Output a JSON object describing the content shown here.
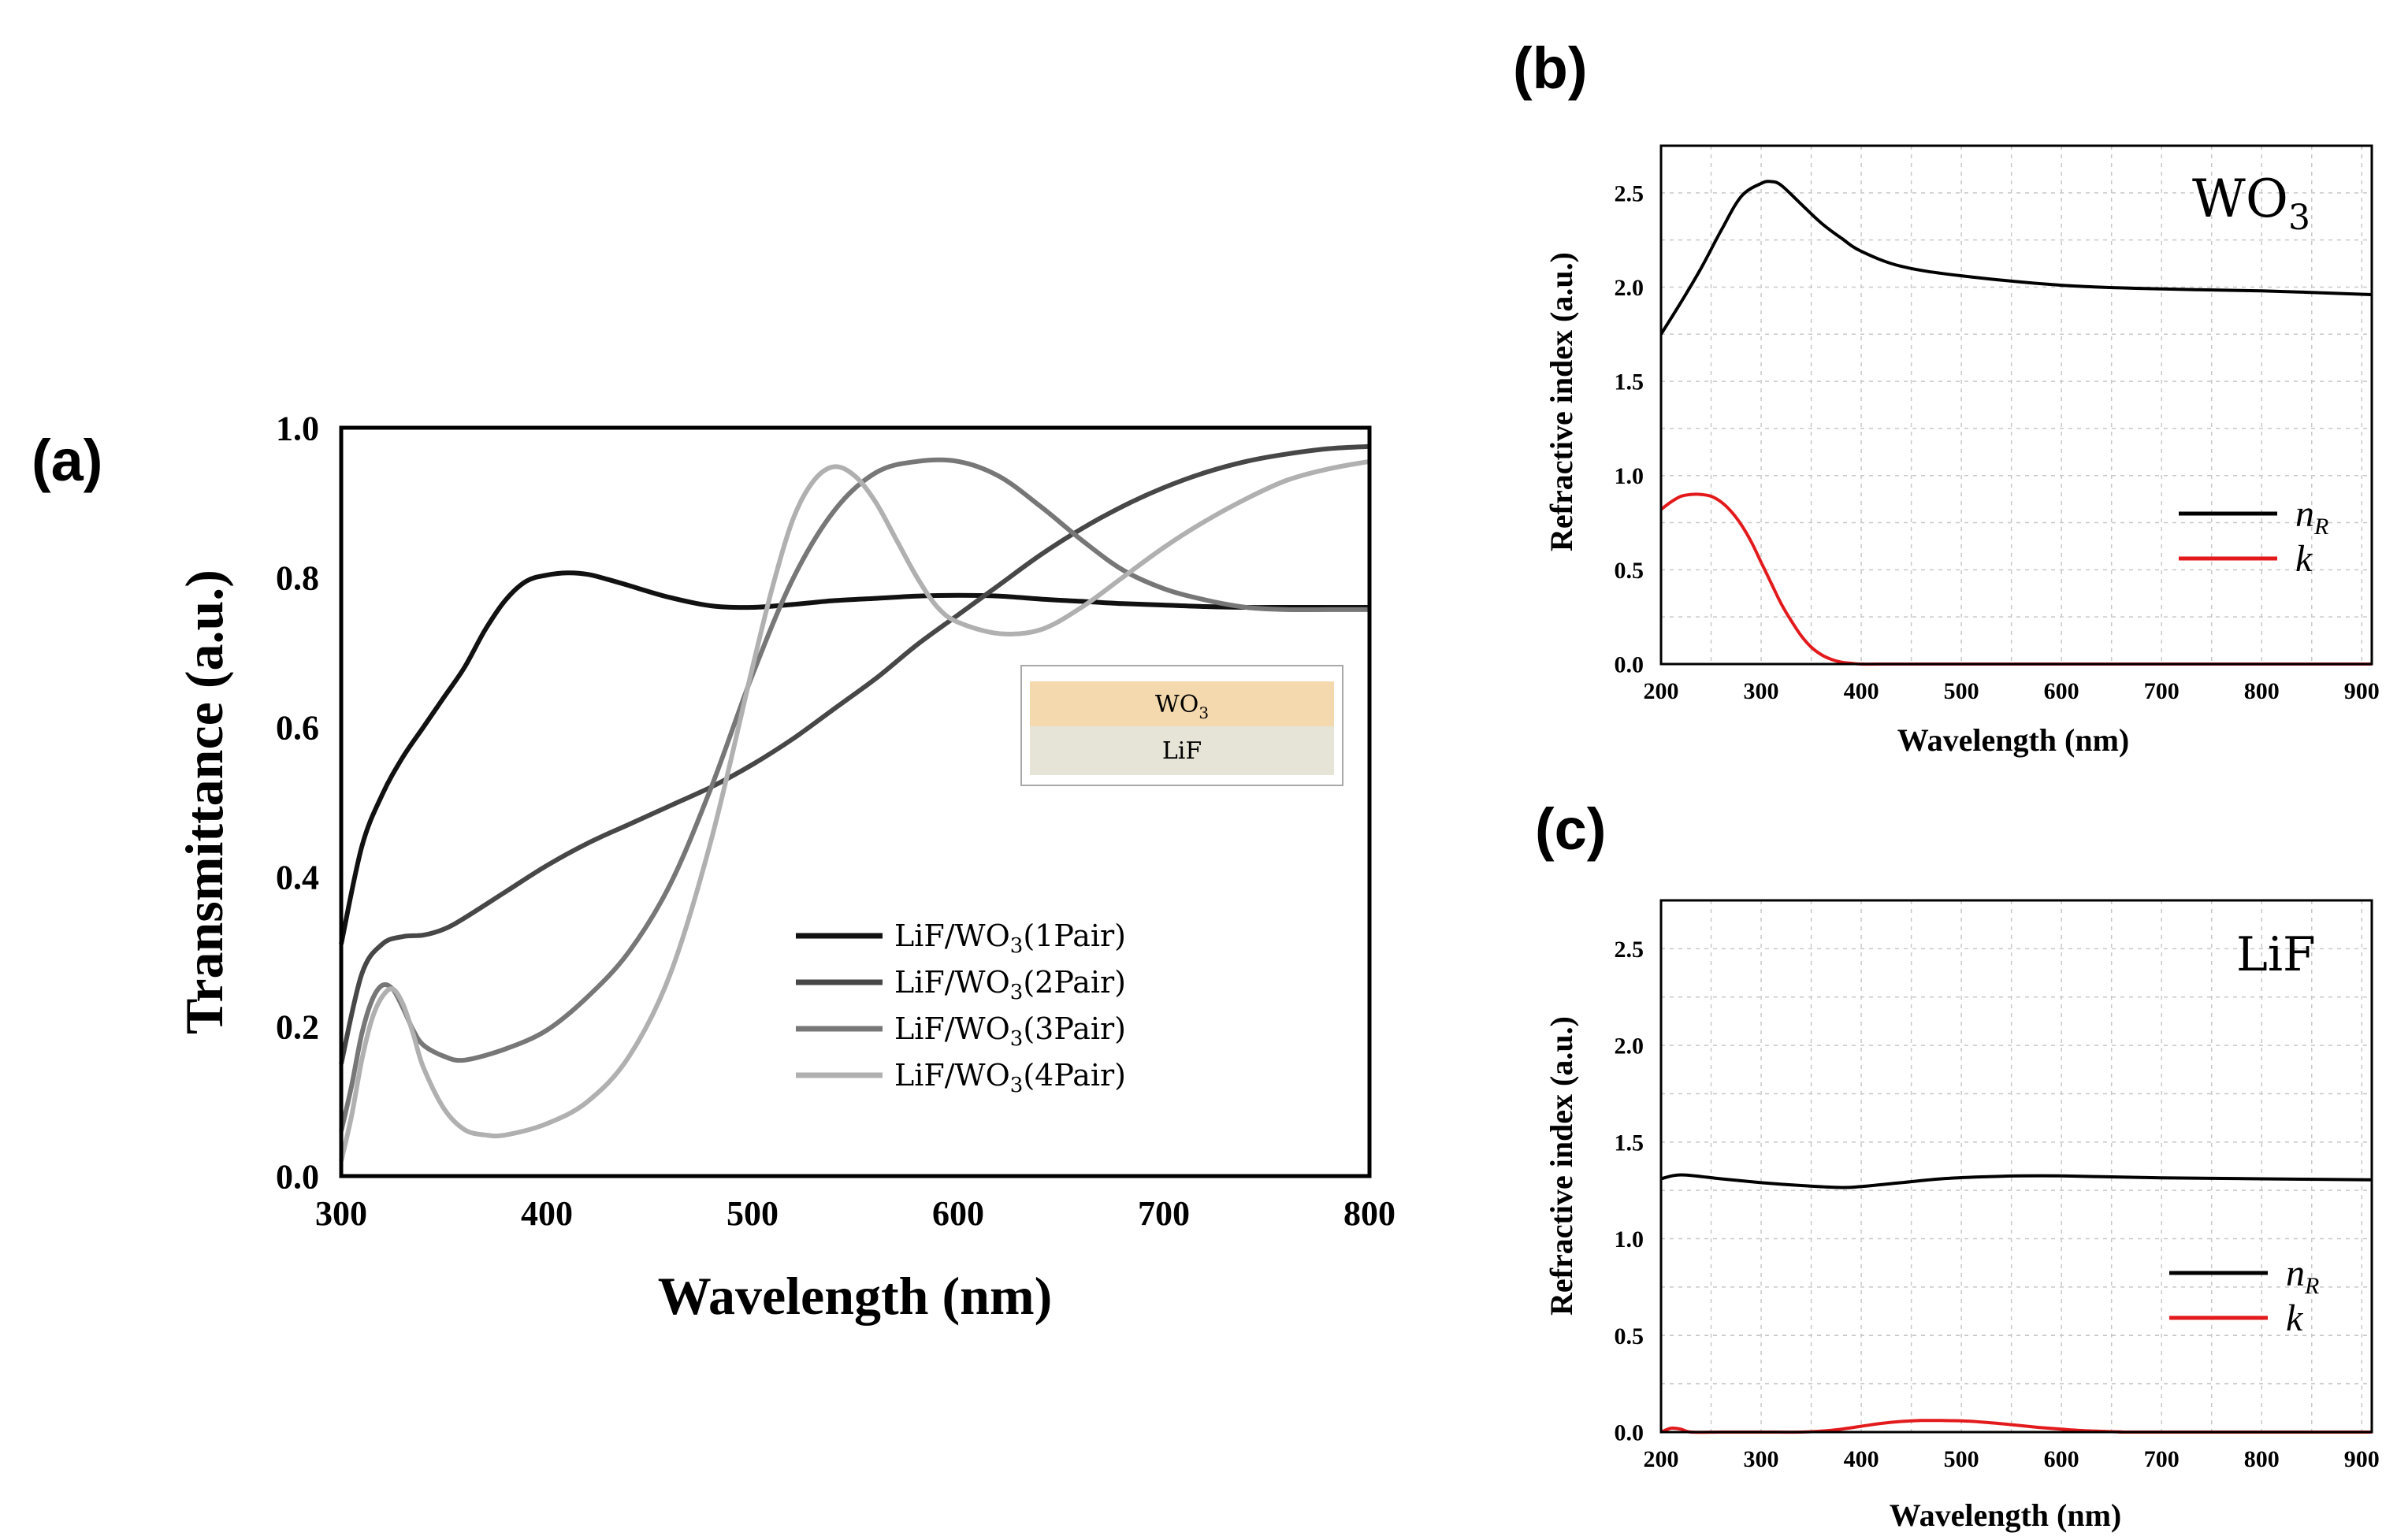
{
  "panels": {
    "a": "(a)",
    "b": "(b)",
    "c": "(c)"
  },
  "colors": {
    "series_a": [
      "#111111",
      "#474747",
      "#777777",
      "#b0b0b0"
    ],
    "n_R": "#000000",
    "k": "#e31a1c",
    "inset_top": "#f5d9ae",
    "inset_bottom": "#e6e4d6"
  },
  "inset": {
    "top_label": "WO",
    "top_sub": "3",
    "bottom_label": "LiF"
  },
  "materials": {
    "b_label": "WO",
    "b_sub": "3",
    "c_label": "LiF"
  },
  "chart_data": [
    {
      "id": "a",
      "type": "line",
      "xlabel": "Wavelength (nm)",
      "ylabel": "Transmittance (a.u.)",
      "xlim": [
        300,
        800
      ],
      "ylim": [
        0.0,
        1.0
      ],
      "xticks": [
        "300",
        "400",
        "500",
        "600",
        "700",
        "800"
      ],
      "yticks": [
        "0.0",
        "0.2",
        "0.4",
        "0.6",
        "0.8",
        "1.0"
      ],
      "grid": false,
      "legend_position": "bottom-center",
      "series": [
        {
          "name": "LiF/WO",
          "name_sub": "3",
          "name_suffix": "(1Pair)",
          "x": [
            300,
            310,
            320,
            330,
            340,
            350,
            360,
            370,
            380,
            390,
            400,
            410,
            420,
            430,
            440,
            460,
            480,
            500,
            520,
            540,
            560,
            580,
            600,
            620,
            640,
            660,
            680,
            700,
            720,
            740,
            760,
            780,
            800
          ],
          "y": [
            0.31,
            0.44,
            0.51,
            0.56,
            0.6,
            0.64,
            0.68,
            0.73,
            0.77,
            0.795,
            0.803,
            0.806,
            0.804,
            0.797,
            0.789,
            0.773,
            0.762,
            0.76,
            0.764,
            0.769,
            0.772,
            0.775,
            0.776,
            0.775,
            0.771,
            0.768,
            0.765,
            0.763,
            0.761,
            0.76,
            0.76,
            0.76,
            0.76
          ]
        },
        {
          "name": "LiF/WO",
          "name_sub": "3",
          "name_suffix": "(2Pair)",
          "x": [
            300,
            310,
            320,
            330,
            340,
            350,
            360,
            380,
            400,
            420,
            440,
            460,
            480,
            500,
            520,
            540,
            560,
            580,
            600,
            620,
            640,
            660,
            680,
            700,
            720,
            740,
            760,
            780,
            800
          ],
          "y": [
            0.15,
            0.27,
            0.31,
            0.32,
            0.322,
            0.33,
            0.345,
            0.38,
            0.415,
            0.445,
            0.47,
            0.495,
            0.52,
            0.55,
            0.585,
            0.625,
            0.665,
            0.71,
            0.75,
            0.79,
            0.83,
            0.865,
            0.895,
            0.92,
            0.94,
            0.955,
            0.965,
            0.972,
            0.975
          ]
        },
        {
          "name": "LiF/WO",
          "name_sub": "3",
          "name_suffix": "(3Pair)",
          "x": [
            300,
            305,
            310,
            315,
            320,
            325,
            330,
            335,
            340,
            350,
            360,
            380,
            400,
            420,
            440,
            460,
            480,
            500,
            520,
            540,
            560,
            580,
            600,
            620,
            640,
            660,
            680,
            700,
            720,
            740,
            760,
            780,
            800
          ],
          "y": [
            0.06,
            0.12,
            0.19,
            0.235,
            0.255,
            0.25,
            0.225,
            0.195,
            0.175,
            0.16,
            0.155,
            0.17,
            0.195,
            0.24,
            0.3,
            0.39,
            0.52,
            0.67,
            0.8,
            0.89,
            0.94,
            0.955,
            0.955,
            0.935,
            0.895,
            0.85,
            0.81,
            0.785,
            0.77,
            0.76,
            0.757,
            0.757,
            0.757
          ]
        },
        {
          "name": "LiF/WO",
          "name_sub": "3",
          "name_suffix": "(4Pair)",
          "x": [
            300,
            305,
            310,
            315,
            320,
            325,
            330,
            335,
            340,
            350,
            360,
            370,
            380,
            400,
            420,
            440,
            460,
            480,
            500,
            510,
            520,
            530,
            540,
            550,
            560,
            570,
            580,
            590,
            600,
            620,
            640,
            660,
            680,
            700,
            720,
            740,
            760,
            780,
            800
          ],
          "y": [
            0.02,
            0.08,
            0.155,
            0.21,
            0.24,
            0.25,
            0.23,
            0.19,
            0.145,
            0.09,
            0.062,
            0.055,
            0.055,
            0.07,
            0.1,
            0.16,
            0.27,
            0.45,
            0.68,
            0.79,
            0.88,
            0.93,
            0.948,
            0.935,
            0.9,
            0.85,
            0.8,
            0.76,
            0.74,
            0.725,
            0.73,
            0.76,
            0.8,
            0.84,
            0.875,
            0.905,
            0.93,
            0.945,
            0.955
          ]
        }
      ]
    },
    {
      "id": "b",
      "type": "line",
      "xlabel": "Wavelength (nm)",
      "ylabel": "Refractive index (a.u.)",
      "xlim": [
        200,
        910
      ],
      "ylim": [
        0.0,
        2.75
      ],
      "xticks": [
        "200",
        "300",
        "400",
        "500",
        "600",
        "700",
        "800",
        "900"
      ],
      "yticks": [
        "0.0",
        "0.5",
        "1.0",
        "1.5",
        "2.0",
        "2.5"
      ],
      "grid": true,
      "legend_position": "right",
      "series": [
        {
          "name": "n",
          "name_sub": "R",
          "x": [
            200,
            220,
            240,
            260,
            280,
            300,
            310,
            320,
            340,
            360,
            380,
            400,
            440,
            500,
            600,
            700,
            800,
            910
          ],
          "y": [
            1.75,
            1.92,
            2.1,
            2.3,
            2.48,
            2.55,
            2.56,
            2.54,
            2.44,
            2.34,
            2.26,
            2.19,
            2.11,
            2.06,
            2.01,
            1.99,
            1.98,
            1.96
          ]
        },
        {
          "name": "k",
          "x": [
            200,
            210,
            220,
            230,
            240,
            250,
            260,
            270,
            280,
            290,
            300,
            310,
            320,
            330,
            340,
            350,
            360,
            370,
            380,
            390,
            400,
            420,
            500,
            910
          ],
          "y": [
            0.82,
            0.86,
            0.89,
            0.9,
            0.9,
            0.89,
            0.86,
            0.81,
            0.74,
            0.65,
            0.54,
            0.43,
            0.32,
            0.23,
            0.15,
            0.09,
            0.05,
            0.025,
            0.01,
            0.004,
            0.0,
            0.0,
            0.0,
            0.0
          ]
        }
      ]
    },
    {
      "id": "c",
      "type": "line",
      "xlabel": "Wavelength (nm)",
      "ylabel": "Refractive index (a.u.)",
      "xlim": [
        200,
        910
      ],
      "ylim": [
        0.0,
        2.75
      ],
      "xticks": [
        "200",
        "300",
        "400",
        "500",
        "600",
        "700",
        "800",
        "900"
      ],
      "yticks": [
        "0.0",
        "0.5",
        "1.0",
        "1.5",
        "2.0",
        "2.5"
      ],
      "grid": true,
      "legend_position": "right",
      "series": [
        {
          "name": "n",
          "name_sub": "R",
          "x": [
            200,
            220,
            260,
            300,
            340,
            380,
            400,
            440,
            480,
            520,
            560,
            600,
            650,
            700,
            800,
            910
          ],
          "y": [
            1.31,
            1.33,
            1.31,
            1.29,
            1.275,
            1.265,
            1.27,
            1.29,
            1.31,
            1.32,
            1.325,
            1.325,
            1.32,
            1.315,
            1.31,
            1.305
          ]
        },
        {
          "name": "k",
          "x": [
            200,
            210,
            220,
            230,
            260,
            300,
            340,
            360,
            380,
            400,
            420,
            440,
            460,
            480,
            500,
            520,
            540,
            560,
            580,
            600,
            620,
            640,
            660,
            680,
            910
          ],
          "y": [
            0.0,
            0.02,
            0.015,
            0.0,
            0.0,
            0.0,
            0.0,
            0.005,
            0.015,
            0.03,
            0.045,
            0.055,
            0.06,
            0.06,
            0.058,
            0.052,
            0.043,
            0.033,
            0.023,
            0.015,
            0.008,
            0.004,
            0.001,
            0.0,
            0.0
          ]
        }
      ]
    }
  ]
}
